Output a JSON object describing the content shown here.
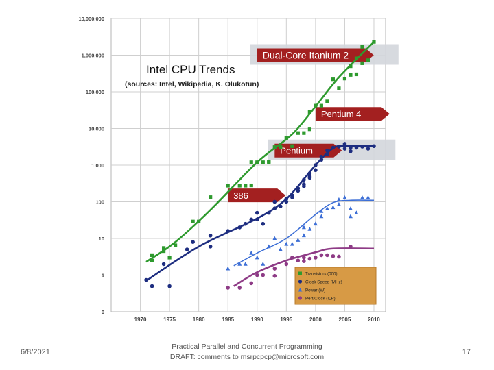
{
  "footer": {
    "date": "6/8/2021",
    "line1": "Practical Parallel and Concurrent Programming",
    "line2": "DRAFT: comments to msrpcpcp@microsoft.com",
    "page": "17"
  },
  "colors": {
    "transistors": "#2e9a2e",
    "clock": "#1d2d80",
    "power": "#3d6fd6",
    "perf": "#8e3b86",
    "arrow": "#a32020",
    "banner": "#d3d6dc"
  },
  "chart_data": {
    "type": "scatter",
    "title": "Intel CPU Trends",
    "subtitle": "(sources: Intel, Wikipedia, K. Olukotun)",
    "xlabel": "",
    "ylabel": "",
    "xlim": [
      1965,
      2012
    ],
    "ylim": [
      0,
      10000000
    ],
    "yscale": "log",
    "x_ticks": [
      1970,
      1975,
      1980,
      1985,
      1990,
      1995,
      2000,
      2005,
      2010
    ],
    "y_ticks": [
      {
        "value": 0,
        "label": "0"
      },
      {
        "value": 1,
        "label": "1"
      },
      {
        "value": 10,
        "label": "10"
      },
      {
        "value": 100,
        "label": "100"
      },
      {
        "value": 1000,
        "label": "1,000"
      },
      {
        "value": 10000,
        "label": "10,000"
      },
      {
        "value": 100000,
        "label": "100,000"
      },
      {
        "value": 1000000,
        "label": "1,000,000"
      },
      {
        "value": 10000000,
        "label": "10,000,000"
      }
    ],
    "grid": true,
    "legend_position": "bottom-right",
    "annotations": [
      {
        "label": "Dual-Core Itanium 2",
        "x": 1990,
        "value": 1000000
      },
      {
        "label": "Pentium 4",
        "x": 2000,
        "value": 25000
      },
      {
        "label": "Pentium",
        "x": 1993,
        "value": 2500
      },
      {
        "label": "386",
        "x": 1985,
        "value": 150
      }
    ],
    "series": [
      {
        "name": "Transistors (000)",
        "marker": "square",
        "points": [
          [
            1972,
            2.5
          ],
          [
            1972,
            3.5
          ],
          [
            1974,
            4.5
          ],
          [
            1974,
            5.5
          ],
          [
            1975,
            3
          ],
          [
            1976,
            6.5
          ],
          [
            1979,
            29
          ],
          [
            1980,
            29
          ],
          [
            1982,
            134
          ],
          [
            1985,
            275
          ],
          [
            1987,
            275
          ],
          [
            1988,
            275
          ],
          [
            1989,
            280
          ],
          [
            1989,
            1200
          ],
          [
            1990,
            1200
          ],
          [
            1991,
            1200
          ],
          [
            1992,
            1200
          ],
          [
            1992,
            1250
          ],
          [
            1993,
            3100
          ],
          [
            1994,
            3100
          ],
          [
            1995,
            5500
          ],
          [
            1996,
            3300
          ],
          [
            1997,
            7500
          ],
          [
            1998,
            7500
          ],
          [
            1999,
            9500
          ],
          [
            1999,
            28000
          ],
          [
            2000,
            42000
          ],
          [
            2001,
            42000
          ],
          [
            2002,
            55000
          ],
          [
            2003,
            220000
          ],
          [
            2004,
            125000
          ],
          [
            2005,
            230000
          ],
          [
            2006,
            290000
          ],
          [
            2006,
            500000
          ],
          [
            2007,
            300000
          ],
          [
            2007,
            820000
          ],
          [
            2008,
            600000
          ],
          [
            2008,
            1700000
          ],
          [
            2009,
            730000
          ],
          [
            2010,
            2300000
          ]
        ],
        "trend": [
          [
            1971,
            2.3
          ],
          [
            1976,
            8
          ],
          [
            1982,
            60
          ],
          [
            1990,
            1200
          ],
          [
            1996,
            7000
          ],
          [
            2000,
            40000
          ],
          [
            2004,
            250000
          ],
          [
            2010,
            2300000
          ]
        ]
      },
      {
        "name": "Clock Speed (MHz)",
        "marker": "circle",
        "points": [
          [
            1971,
            0.74
          ],
          [
            1972,
            0.5
          ],
          [
            1974,
            2
          ],
          [
            1975,
            0.5
          ],
          [
            1978,
            5
          ],
          [
            1979,
            8
          ],
          [
            1982,
            6
          ],
          [
            1982,
            12
          ],
          [
            1985,
            16
          ],
          [
            1987,
            20
          ],
          [
            1988,
            25
          ],
          [
            1989,
            33
          ],
          [
            1990,
            33
          ],
          [
            1990,
            50
          ],
          [
            1991,
            25
          ],
          [
            1992,
            50
          ],
          [
            1993,
            66
          ],
          [
            1993,
            100
          ],
          [
            1994,
            75
          ],
          [
            1995,
            100
          ],
          [
            1995,
            120
          ],
          [
            1996,
            133
          ],
          [
            1996,
            150
          ],
          [
            1997,
            200
          ],
          [
            1997,
            233
          ],
          [
            1998,
            266
          ],
          [
            1998,
            300
          ],
          [
            1998,
            400
          ],
          [
            1999,
            450
          ],
          [
            1999,
            500
          ],
          [
            1999,
            600
          ],
          [
            2000,
            733
          ],
          [
            2000,
            1000
          ],
          [
            2001,
            1400
          ],
          [
            2001,
            1700
          ],
          [
            2002,
            2000
          ],
          [
            2002,
            2500
          ],
          [
            2003,
            3000
          ],
          [
            2004,
            3200
          ],
          [
            2005,
            3800
          ],
          [
            2005,
            2800
          ],
          [
            2006,
            2400
          ],
          [
            2006,
            3000
          ],
          [
            2007,
            3000
          ],
          [
            2008,
            3200
          ],
          [
            2009,
            2800
          ],
          [
            2010,
            3300
          ]
        ],
        "trend": [
          [
            1971,
            0.7
          ],
          [
            1980,
            6
          ],
          [
            1990,
            35
          ],
          [
            1995,
            120
          ],
          [
            2000,
            1000
          ],
          [
            2003,
            2900
          ],
          [
            2005,
            3300
          ],
          [
            2010,
            3300
          ]
        ]
      },
      {
        "name": "Power (W)",
        "marker": "triangle",
        "points": [
          [
            1985,
            1.5
          ],
          [
            1987,
            2
          ],
          [
            1988,
            2
          ],
          [
            1989,
            4
          ],
          [
            1990,
            3
          ],
          [
            1991,
            2
          ],
          [
            1992,
            6
          ],
          [
            1993,
            10
          ],
          [
            1994,
            5
          ],
          [
            1995,
            7
          ],
          [
            1996,
            7
          ],
          [
            1997,
            9
          ],
          [
            1998,
            12
          ],
          [
            1998,
            20
          ],
          [
            1999,
            18
          ],
          [
            2000,
            25
          ],
          [
            2001,
            40
          ],
          [
            2001,
            55
          ],
          [
            2002,
            65
          ],
          [
            2003,
            70
          ],
          [
            2004,
            85
          ],
          [
            2004,
            115
          ],
          [
            2005,
            130
          ],
          [
            2006,
            65
          ],
          [
            2006,
            40
          ],
          [
            2007,
            50
          ],
          [
            2008,
            130
          ],
          [
            2009,
            130
          ]
        ],
        "trend": [
          [
            1986,
            1.8
          ],
          [
            1990,
            4
          ],
          [
            1995,
            10
          ],
          [
            2000,
            45
          ],
          [
            2003,
            95
          ],
          [
            2006,
            110
          ],
          [
            2010,
            110
          ]
        ]
      },
      {
        "name": "Perf/Clock (ILP)",
        "marker": "circle",
        "points": [
          [
            1985,
            0.45
          ],
          [
            1987,
            0.45
          ],
          [
            1989,
            0.6
          ],
          [
            1990,
            1
          ],
          [
            1991,
            1
          ],
          [
            1993,
            1.5
          ],
          [
            1993,
            0.95
          ],
          [
            1995,
            2
          ],
          [
            1996,
            3
          ],
          [
            1997,
            2.5
          ],
          [
            1998,
            2.4
          ],
          [
            1998,
            3
          ],
          [
            1999,
            2.8
          ],
          [
            2000,
            3
          ],
          [
            2001,
            3.5
          ],
          [
            2002,
            3.5
          ],
          [
            2003,
            3.3
          ],
          [
            2004,
            3.2
          ],
          [
            2006,
            6
          ]
        ],
        "trend": [
          [
            1986,
            0.5
          ],
          [
            1990,
            1.2
          ],
          [
            1995,
            2.5
          ],
          [
            2000,
            4.2
          ],
          [
            2003,
            5.3
          ],
          [
            2010,
            5.3
          ]
        ]
      }
    ]
  }
}
